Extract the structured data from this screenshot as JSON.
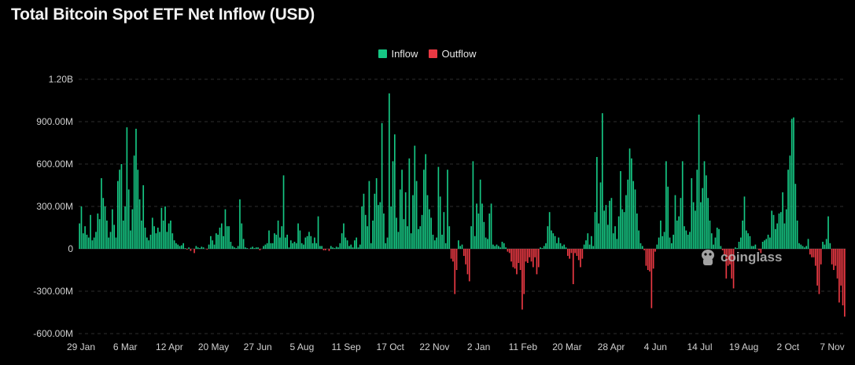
{
  "chart_data": {
    "type": "bar",
    "title": "Total Bitcoin Spot ETF Net Inflow (USD)",
    "xlabel": "",
    "ylabel": "",
    "ylim": [
      -600000000,
      1200000000
    ],
    "y_ticks": [
      {
        "value": 1200000000,
        "label": "1.20B"
      },
      {
        "value": 900000000,
        "label": "900.00M"
      },
      {
        "value": 600000000,
        "label": "600.00M"
      },
      {
        "value": 300000000,
        "label": "300.00M"
      },
      {
        "value": 0,
        "label": "0"
      },
      {
        "value": -300000000,
        "label": "-300.00M"
      },
      {
        "value": -600000000,
        "label": "-600.00M"
      }
    ],
    "x_tick_labels": [
      "29 Jan",
      "6 Mar",
      "12 Apr",
      "20 May",
      "27 Jun",
      "5 Aug",
      "11 Sep",
      "17 Oct",
      "22 Nov",
      "2 Jan",
      "11 Feb",
      "20 Mar",
      "28 Apr",
      "4 Jun",
      "14 Jul",
      "19 Aug",
      "2 Oct",
      "7 Nov"
    ],
    "grid": true,
    "legend_position": "top-center",
    "series": [
      {
        "name": "Inflow",
        "color": "#16c784"
      },
      {
        "name": "Outflow",
        "color": "#ea3943"
      }
    ],
    "values_millions": [
      180,
      300,
      110,
      160,
      100,
      80,
      240,
      60,
      80,
      120,
      250,
      210,
      500,
      360,
      300,
      200,
      80,
      120,
      280,
      170,
      80,
      480,
      560,
      600,
      200,
      300,
      860,
      420,
      130,
      280,
      660,
      850,
      560,
      350,
      200,
      450,
      150,
      80,
      60,
      100,
      220,
      160,
      110,
      150,
      120,
      290,
      200,
      300,
      120,
      180,
      200,
      110,
      60,
      40,
      30,
      20,
      25,
      40,
      5,
      -5,
      10,
      -15,
      0,
      -30,
      20,
      10,
      5,
      15,
      10,
      0,
      -5,
      30,
      90,
      60,
      30,
      110,
      100,
      150,
      180,
      90,
      280,
      160,
      160,
      50,
      20,
      10,
      5,
      20,
      350,
      180,
      70,
      10,
      5,
      0,
      8,
      15,
      5,
      10,
      10,
      -10,
      0,
      20,
      30,
      40,
      130,
      40,
      40,
      110,
      100,
      200,
      80,
      160,
      520,
      80,
      100,
      10,
      60,
      40,
      50,
      40,
      180,
      130,
      40,
      30,
      80,
      90,
      120,
      90,
      40,
      80,
      40,
      230,
      20,
      20,
      -10,
      -10,
      0,
      -15,
      20,
      10,
      5,
      15,
      10,
      40,
      110,
      180,
      80,
      60,
      20,
      30,
      10,
      60,
      80,
      10,
      30,
      300,
      390,
      240,
      160,
      480,
      40,
      200,
      390,
      500,
      310,
      330,
      890,
      250,
      40,
      80,
      1100,
      300,
      620,
      810,
      220,
      120,
      420,
      560,
      210,
      400,
      160,
      640,
      110,
      380,
      730,
      480,
      140,
      160,
      240,
      560,
      670,
      380,
      280,
      220,
      100,
      60,
      80,
      580,
      370,
      100,
      260,
      40,
      560,
      160,
      -70,
      -90,
      -320,
      -150,
      60,
      20,
      30,
      -50,
      -110,
      -180,
      -230,
      160,
      620,
      90,
      320,
      250,
      490,
      320,
      190,
      80,
      70,
      250,
      320,
      30,
      20,
      30,
      20,
      10,
      50,
      40,
      10,
      -20,
      -30,
      -90,
      -130,
      -140,
      -180,
      -100,
      -150,
      -430,
      -320,
      -90,
      -100,
      -60,
      -90,
      -130,
      -60,
      -180,
      -130,
      10,
      5,
      20,
      40,
      160,
      260,
      130,
      110,
      90,
      40,
      80,
      40,
      20,
      30,
      10,
      -50,
      -70,
      -30,
      -250,
      -30,
      -50,
      -80,
      -130,
      -70,
      30,
      60,
      110,
      30,
      90,
      20,
      260,
      650,
      180,
      470,
      960,
      270,
      310,
      170,
      340,
      360,
      110,
      160,
      70,
      230,
      550,
      280,
      260,
      380,
      490,
      710,
      640,
      480,
      420,
      250,
      130,
      40,
      20,
      -10,
      -120,
      -150,
      -160,
      -420,
      -140,
      -20,
      30,
      80,
      200,
      90,
      120,
      620,
      440,
      80,
      40,
      100,
      380,
      200,
      230,
      360,
      620,
      160,
      130,
      100,
      120,
      500,
      330,
      270,
      560,
      950,
      330,
      430,
      620,
      520,
      360,
      200,
      110,
      30,
      80,
      150,
      140,
      20,
      -10,
      -40,
      -210,
      -120,
      -110,
      -210,
      -280,
      10,
      5,
      50,
      80,
      200,
      370,
      130,
      110,
      90,
      20,
      20,
      30,
      0,
      -10,
      -30,
      50,
      60,
      70,
      100,
      80,
      270,
      240,
      140,
      180,
      250,
      260,
      400,
      180,
      280,
      560,
      660,
      920,
      930,
      460,
      200,
      40,
      30,
      20,
      10,
      20,
      70,
      -40,
      -60,
      -60,
      -120,
      -260,
      -320,
      -110,
      50,
      30,
      70,
      230,
      40,
      -110,
      -150,
      -120,
      -210,
      -380,
      -260,
      -400,
      -480
    ]
  },
  "legend": {
    "inflow_label": "Inflow",
    "outflow_label": "Outflow"
  },
  "watermark": {
    "text": "coinglass"
  }
}
